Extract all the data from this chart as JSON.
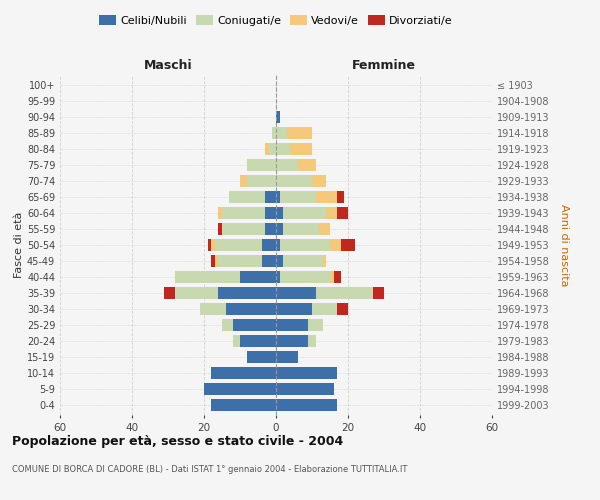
{
  "age_groups": [
    "0-4",
    "5-9",
    "10-14",
    "15-19",
    "20-24",
    "25-29",
    "30-34",
    "35-39",
    "40-44",
    "45-49",
    "50-54",
    "55-59",
    "60-64",
    "65-69",
    "70-74",
    "75-79",
    "80-84",
    "85-89",
    "90-94",
    "95-99",
    "100+"
  ],
  "birth_years": [
    "1999-2003",
    "1994-1998",
    "1989-1993",
    "1984-1988",
    "1979-1983",
    "1974-1978",
    "1969-1973",
    "1964-1968",
    "1959-1963",
    "1954-1958",
    "1949-1953",
    "1944-1948",
    "1939-1943",
    "1934-1938",
    "1929-1933",
    "1924-1928",
    "1919-1923",
    "1914-1918",
    "1909-1913",
    "1904-1908",
    "≤ 1903"
  ],
  "males": {
    "celibi": [
      18,
      20,
      18,
      8,
      10,
      12,
      14,
      16,
      10,
      4,
      4,
      3,
      3,
      3,
      0,
      0,
      0,
      0,
      0,
      0,
      0
    ],
    "coniugati": [
      0,
      0,
      0,
      0,
      2,
      3,
      7,
      12,
      18,
      12,
      13,
      12,
      12,
      10,
      8,
      8,
      2,
      1,
      0,
      0,
      0
    ],
    "vedovi": [
      0,
      0,
      0,
      0,
      0,
      0,
      0,
      0,
      0,
      1,
      1,
      0,
      1,
      0,
      2,
      0,
      1,
      0,
      0,
      0,
      0
    ],
    "divorziati": [
      0,
      0,
      0,
      0,
      0,
      0,
      0,
      3,
      0,
      1,
      1,
      1,
      0,
      0,
      0,
      0,
      0,
      0,
      0,
      0,
      0
    ]
  },
  "females": {
    "nubili": [
      17,
      16,
      17,
      6,
      9,
      9,
      10,
      11,
      1,
      2,
      1,
      2,
      2,
      1,
      0,
      0,
      0,
      0,
      1,
      0,
      0
    ],
    "coniugate": [
      0,
      0,
      0,
      0,
      2,
      4,
      7,
      16,
      14,
      11,
      14,
      10,
      12,
      10,
      10,
      6,
      4,
      3,
      0,
      0,
      0
    ],
    "vedove": [
      0,
      0,
      0,
      0,
      0,
      0,
      0,
      0,
      1,
      1,
      3,
      3,
      3,
      6,
      4,
      5,
      6,
      7,
      0,
      0,
      0
    ],
    "divorziate": [
      0,
      0,
      0,
      0,
      0,
      0,
      3,
      3,
      2,
      0,
      4,
      0,
      3,
      2,
      0,
      0,
      0,
      0,
      0,
      0,
      0
    ]
  },
  "colors": {
    "celibi": "#3d6fa8",
    "coniugati": "#c8d9b0",
    "vedovi": "#f5c97a",
    "divorziati": "#c0271e"
  },
  "title": "Popolazione per età, sesso e stato civile - 2004",
  "subtitle": "COMUNE DI BORCA DI CADORE (BL) - Dati ISTAT 1° gennaio 2004 - Elaborazione TUTTITALIA.IT",
  "xlabel_left": "Maschi",
  "xlabel_right": "Femmine",
  "ylabel_left": "Fasce di età",
  "ylabel_right": "Anni di nascita",
  "xlim": 60,
  "bg_color": "#f5f5f5",
  "grid_color": "#cccccc"
}
